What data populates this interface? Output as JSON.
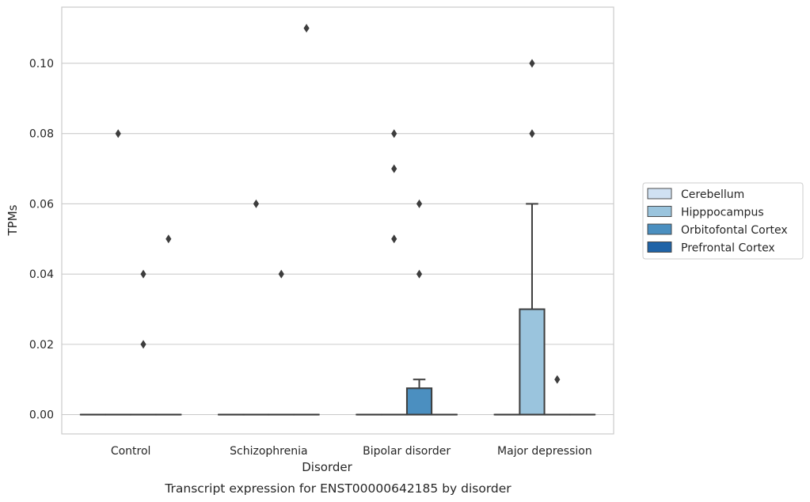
{
  "chart_data": {
    "type": "box",
    "xlabel": "Disorder",
    "ylabel": "TPMs",
    "caption": "Transcript expression for ENST00000642185 by disorder",
    "categories": [
      "Control",
      "Schizophrenia",
      "Bipolar disorder",
      "Major depression"
    ],
    "ylim": [
      -0.0055,
      0.116
    ],
    "yticks": [
      0.0,
      0.02,
      0.04,
      0.06,
      0.08,
      0.1
    ],
    "ytick_labels": [
      "0.00",
      "0.02",
      "0.04",
      "0.06",
      "0.08",
      "0.10"
    ],
    "grid": "horizontal",
    "legend_position": "right",
    "series": [
      {
        "name": "Cerebellum",
        "color": "#d0e1f2",
        "boxes": [
          {
            "category": "Control",
            "q1": 0,
            "median": 0,
            "q3": 0,
            "whisker_low": 0,
            "whisker_high": 0,
            "outliers": []
          },
          {
            "category": "Schizophrenia",
            "q1": 0,
            "median": 0,
            "q3": 0,
            "whisker_low": 0,
            "whisker_high": 0,
            "outliers": []
          },
          {
            "category": "Bipolar disorder",
            "q1": 0,
            "median": 0,
            "q3": 0,
            "whisker_low": 0,
            "whisker_high": 0,
            "outliers": []
          },
          {
            "category": "Major depression",
            "q1": 0,
            "median": 0,
            "q3": 0,
            "whisker_low": 0,
            "whisker_high": 0,
            "outliers": []
          }
        ]
      },
      {
        "name": "Hipppocampus",
        "color": "#9ac4dd",
        "boxes": [
          {
            "category": "Control",
            "q1": 0,
            "median": 0,
            "q3": 0,
            "whisker_low": 0,
            "whisker_high": 0,
            "outliers": [
              0.08
            ]
          },
          {
            "category": "Schizophrenia",
            "q1": 0,
            "median": 0,
            "q3": 0,
            "whisker_low": 0,
            "whisker_high": 0,
            "outliers": [
              0.06
            ]
          },
          {
            "category": "Bipolar disorder",
            "q1": 0,
            "median": 0,
            "q3": 0,
            "whisker_low": 0,
            "whisker_high": 0,
            "outliers": [
              0.08,
              0.07,
              0.05
            ]
          },
          {
            "category": "Major depression",
            "q1": 0,
            "median": 0,
            "q3": 0.03,
            "whisker_low": 0,
            "whisker_high": 0.06,
            "outliers": [
              0.1,
              0.08
            ]
          }
        ]
      },
      {
        "name": "Orbitofontal Cortex",
        "color": "#4b8fc0",
        "boxes": [
          {
            "category": "Control",
            "q1": 0,
            "median": 0,
            "q3": 0,
            "whisker_low": 0,
            "whisker_high": 0,
            "outliers": [
              0.04,
              0.02
            ]
          },
          {
            "category": "Schizophrenia",
            "q1": 0,
            "median": 0,
            "q3": 0,
            "whisker_low": 0,
            "whisker_high": 0,
            "outliers": [
              0.04
            ]
          },
          {
            "category": "Bipolar disorder",
            "q1": 0,
            "median": 0,
            "q3": 0.0075,
            "whisker_low": 0,
            "whisker_high": 0.01,
            "outliers": [
              0.06,
              0.04
            ]
          },
          {
            "category": "Major depression",
            "q1": 0,
            "median": 0,
            "q3": 0,
            "whisker_low": 0,
            "whisker_high": 0,
            "outliers": [
              0.01
            ]
          }
        ]
      },
      {
        "name": "Prefrontal Cortex",
        "color": "#1f63a7",
        "boxes": [
          {
            "category": "Control",
            "q1": 0,
            "median": 0,
            "q3": 0,
            "whisker_low": 0,
            "whisker_high": 0,
            "outliers": [
              0.05
            ]
          },
          {
            "category": "Schizophrenia",
            "q1": 0,
            "median": 0,
            "q3": 0,
            "whisker_low": 0,
            "whisker_high": 0,
            "outliers": [
              0.11
            ]
          },
          {
            "category": "Bipolar disorder",
            "q1": 0,
            "median": 0,
            "q3": 0,
            "whisker_low": 0,
            "whisker_high": 0,
            "outliers": []
          },
          {
            "category": "Major depression",
            "q1": 0,
            "median": 0,
            "q3": 0,
            "whisker_low": 0,
            "whisker_high": 0,
            "outliers": []
          }
        ]
      }
    ]
  }
}
